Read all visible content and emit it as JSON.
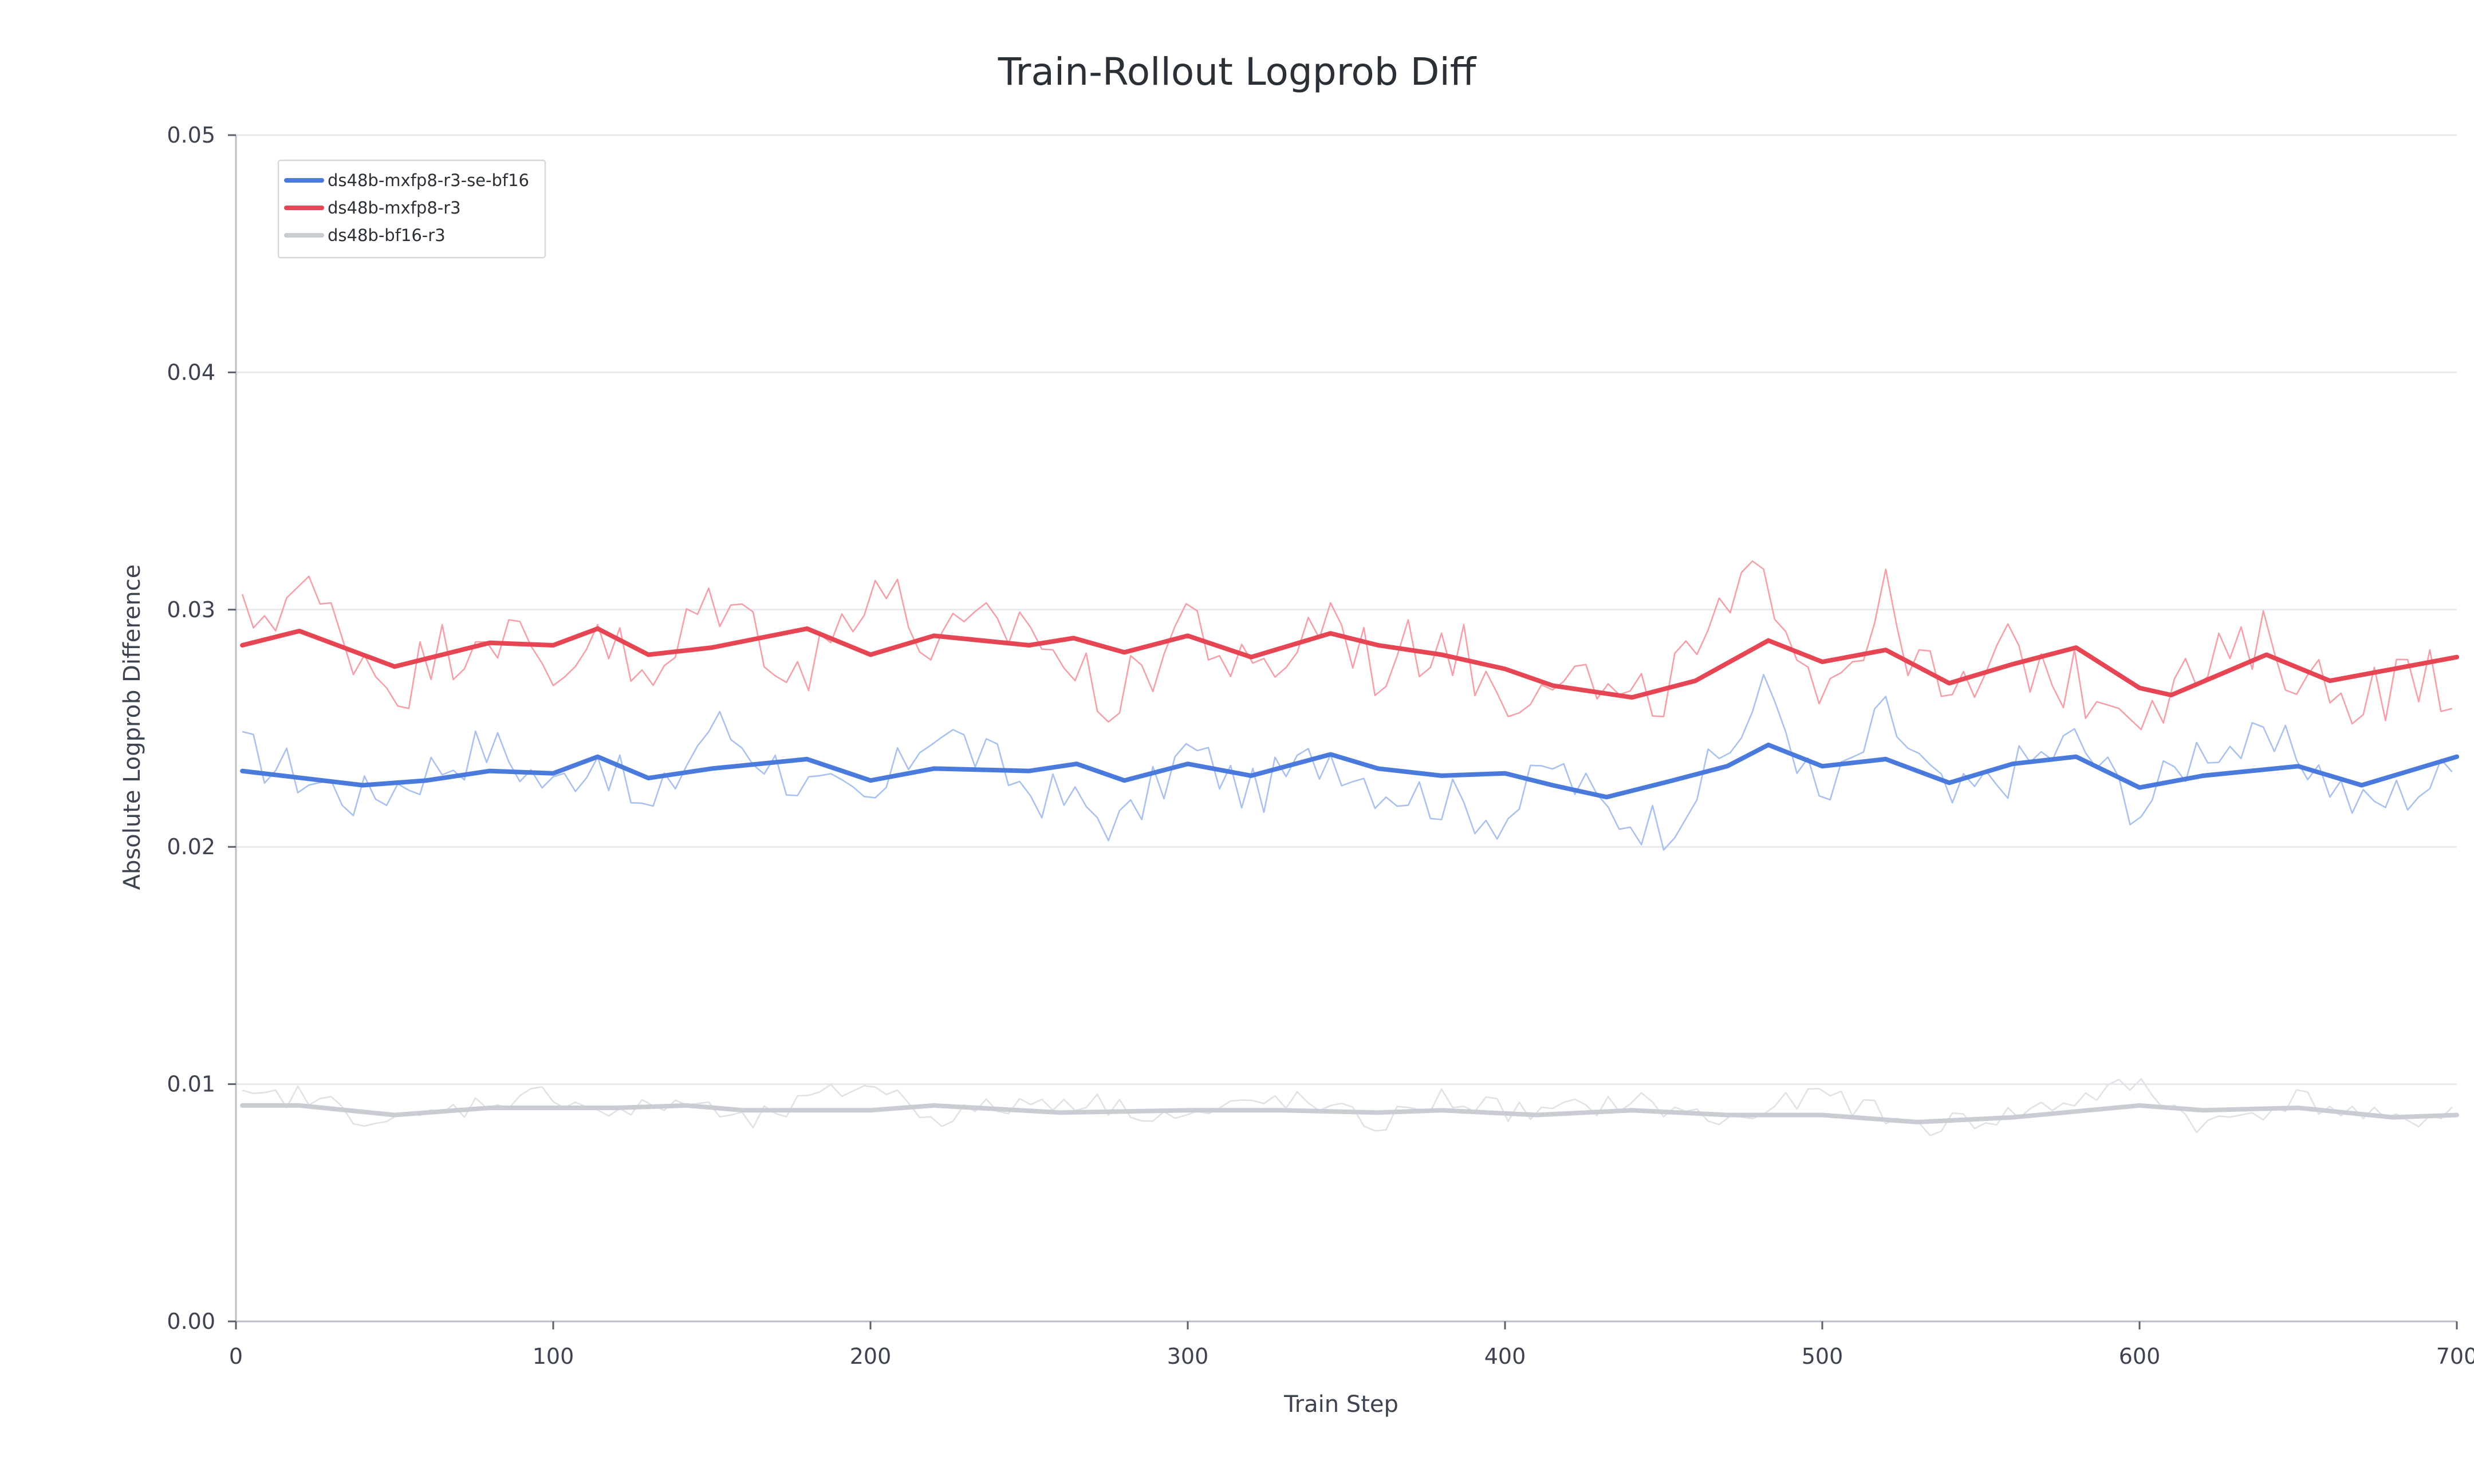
{
  "chart_data": {
    "type": "line",
    "title": "Train-Rollout Logprob Diff",
    "xlabel": "Train Step",
    "ylabel": "Absolute Logprob Difference",
    "xlim": [
      0,
      700
    ],
    "ylim": [
      0,
      0.05
    ],
    "x_ticks": [
      0,
      100,
      200,
      300,
      400,
      500,
      600,
      700
    ],
    "x_tick_labels": [
      "0",
      "100",
      "200",
      "300",
      "400",
      "500",
      "600",
      "700"
    ],
    "y_ticks": [
      0,
      0.01,
      0.02,
      0.03,
      0.04,
      0.05
    ],
    "y_tick_labels": [
      "0.00",
      "0.01",
      "0.02",
      "0.03",
      "0.04",
      "0.05"
    ],
    "grid": true,
    "legend_position": "top-left",
    "series": [
      {
        "name": "ds48b-mxfp8-r3-se-bf16",
        "color": "#4a7bdc",
        "raw_color": "#a9c1ee",
        "x": [
          2,
          40,
          60,
          80,
          100,
          114,
          130,
          150,
          180,
          200,
          220,
          250,
          265,
          280,
          300,
          320,
          345,
          360,
          380,
          400,
          415,
          432,
          450,
          470,
          483,
          500,
          520,
          540,
          560,
          580,
          600,
          620,
          650,
          670,
          700
        ],
        "smoothed": [
          0.0232,
          0.0226,
          0.0228,
          0.0232,
          0.0231,
          0.0238,
          0.0229,
          0.0233,
          0.0237,
          0.0228,
          0.0233,
          0.0232,
          0.0235,
          0.0228,
          0.0235,
          0.023,
          0.0239,
          0.0233,
          0.023,
          0.0231,
          0.0226,
          0.0221,
          0.0227,
          0.0234,
          0.0243,
          0.0234,
          0.0237,
          0.0227,
          0.0235,
          0.0238,
          0.0225,
          0.023,
          0.0234,
          0.0226,
          0.0238
        ],
        "raw": [
          0.024,
          0.022,
          0.0232,
          0.0243,
          0.0225,
          0.024,
          0.0212,
          0.0253,
          0.0225,
          0.0216,
          0.0252,
          0.0224,
          0.0218,
          0.0209,
          0.0241,
          0.0222,
          0.024,
          0.0226,
          0.022,
          0.0212,
          0.0235,
          0.0215,
          0.0209,
          0.024,
          0.0268,
          0.0216,
          0.0256,
          0.0218,
          0.0232,
          0.0245,
          0.0216,
          0.0244,
          0.024,
          0.0216,
          0.0232
        ]
      },
      {
        "name": "ds48b-mxfp8-r3",
        "color": "#e64553",
        "raw_color": "#f5a0a8",
        "x": [
          2,
          20,
          50,
          80,
          100,
          114,
          130,
          150,
          180,
          200,
          220,
          250,
          264,
          280,
          300,
          320,
          345,
          360,
          380,
          400,
          415,
          440,
          460,
          483,
          500,
          520,
          540,
          560,
          580,
          600,
          610,
          640,
          660,
          700
        ],
        "smoothed": [
          0.0285,
          0.0291,
          0.0276,
          0.0286,
          0.0285,
          0.0292,
          0.0281,
          0.0284,
          0.0292,
          0.0281,
          0.0289,
          0.0285,
          0.0288,
          0.0282,
          0.0289,
          0.028,
          0.029,
          0.0285,
          0.0281,
          0.0275,
          0.0268,
          0.0263,
          0.027,
          0.0287,
          0.0278,
          0.0283,
          0.0269,
          0.0277,
          0.0284,
          0.0267,
          0.0264,
          0.0281,
          0.027,
          0.028
        ],
        "raw": [
          0.0294,
          0.0309,
          0.0268,
          0.0296,
          0.027,
          0.0296,
          0.0262,
          0.0308,
          0.0272,
          0.0315,
          0.0283,
          0.0296,
          0.0272,
          0.0262,
          0.03,
          0.0267,
          0.03,
          0.0274,
          0.029,
          0.0262,
          0.028,
          0.0255,
          0.028,
          0.0316,
          0.0267,
          0.0302,
          0.0257,
          0.0283,
          0.0268,
          0.0263,
          0.0267,
          0.0286,
          0.0265,
          0.0272
        ]
      },
      {
        "name": "ds48b-bf16-r3",
        "color": "#c9cdd3",
        "raw_color": "#dfe2e6",
        "x": [
          2,
          20,
          50,
          80,
          100,
          120,
          142,
          160,
          200,
          220,
          260,
          300,
          330,
          360,
          380,
          410,
          440,
          470,
          500,
          530,
          560,
          600,
          620,
          650,
          680,
          700
        ],
        "smoothed": [
          0.0091,
          0.0091,
          0.0087,
          0.009,
          0.009,
          0.009,
          0.0091,
          0.0089,
          0.0089,
          0.0091,
          0.0088,
          0.0089,
          0.0089,
          0.0088,
          0.0089,
          0.0087,
          0.0089,
          0.0087,
          0.0087,
          0.0084,
          0.0086,
          0.0091,
          0.0089,
          0.009,
          0.0086,
          0.0087
        ],
        "raw": [
          0.0093,
          0.0095,
          0.0083,
          0.0093,
          0.0096,
          0.0087,
          0.0093,
          0.0083,
          0.0101,
          0.0086,
          0.0094,
          0.0086,
          0.0094,
          0.0083,
          0.0094,
          0.0087,
          0.0093,
          0.0084,
          0.0096,
          0.0082,
          0.0087,
          0.01,
          0.0082,
          0.0094,
          0.0083,
          0.009
        ]
      }
    ]
  }
}
